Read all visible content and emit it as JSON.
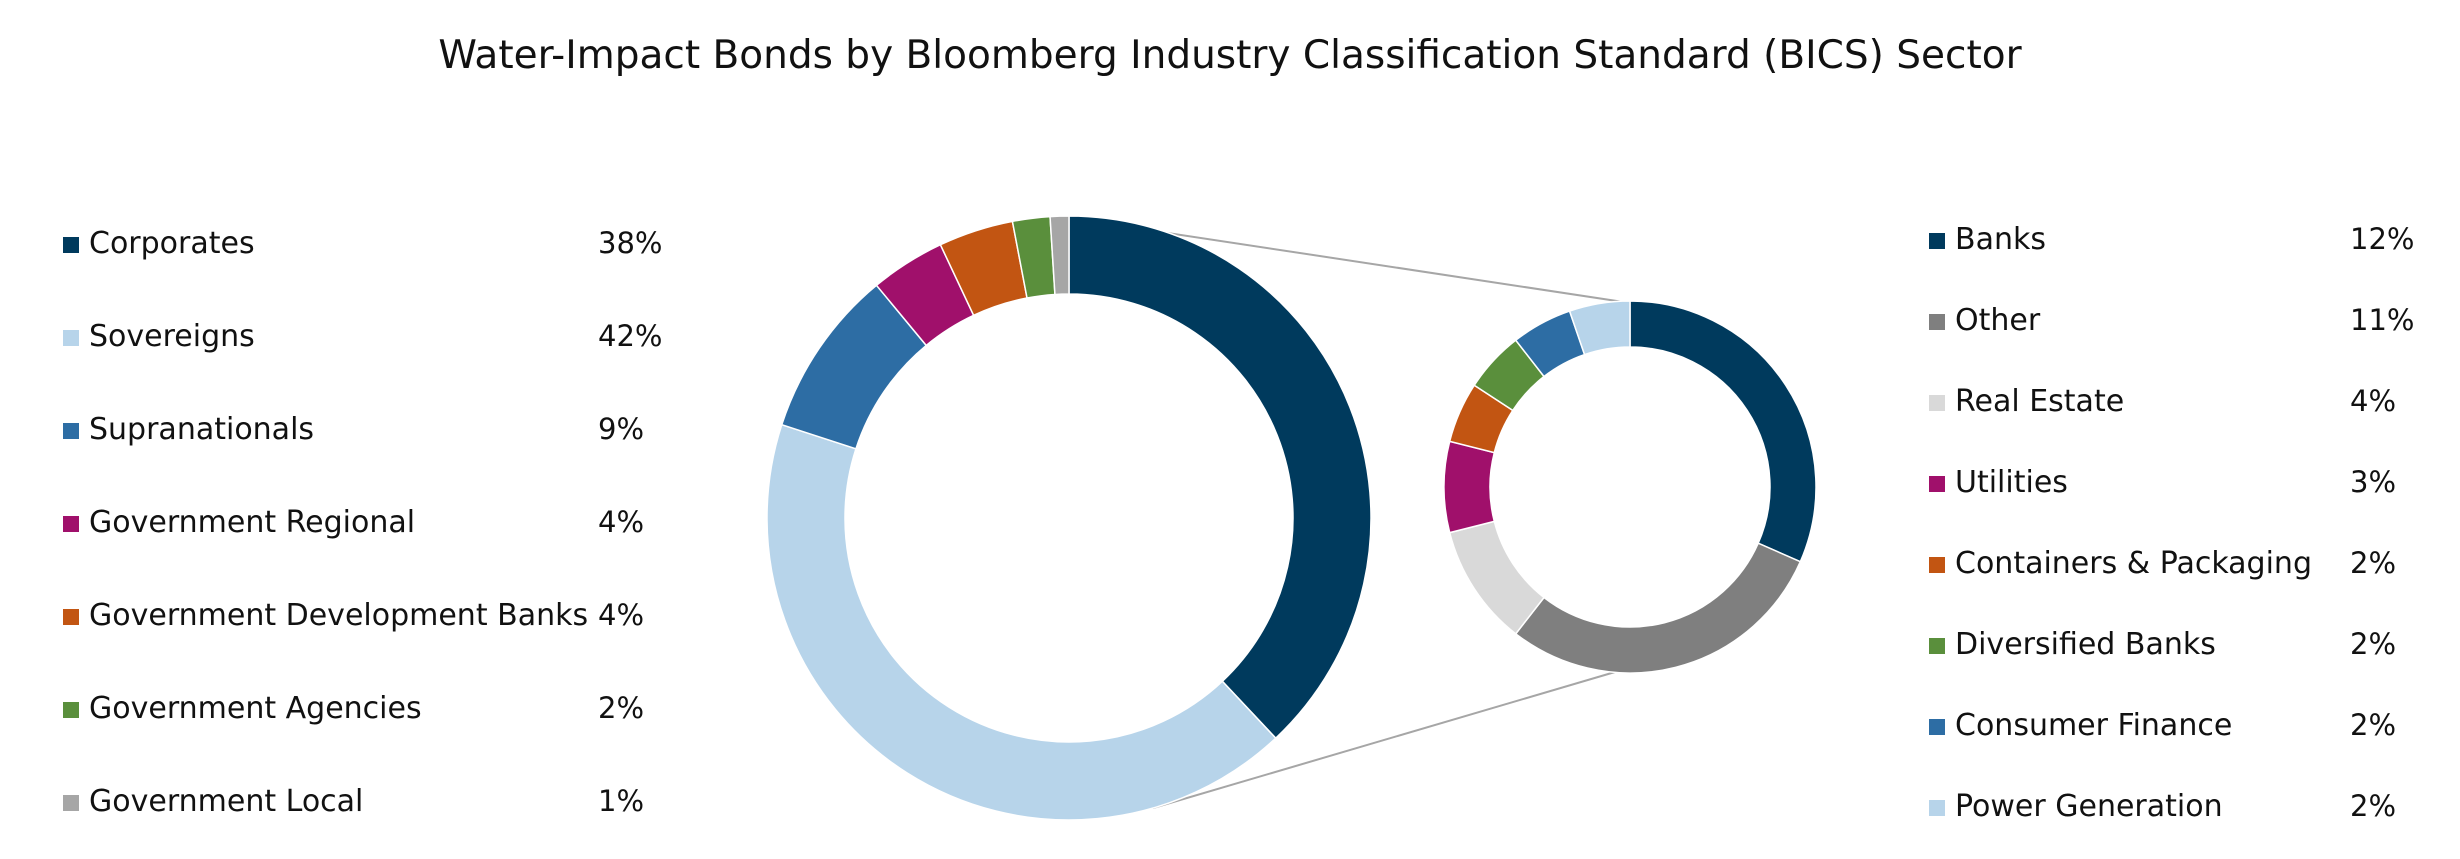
{
  "chart_data": [
    {
      "type": "donut",
      "title": "Water-Impact Bonds by Bloomberg Industry Classification Standard (BICS) Sector",
      "series": [
        {
          "label": "Corporates",
          "value": 38,
          "display": "38%",
          "color": "#003a5d"
        },
        {
          "label": "Sovereigns",
          "value": 42,
          "display": "42%",
          "color": "#b7d4ea"
        },
        {
          "label": "Supranationals",
          "value": 9,
          "display": "9%",
          "color": "#2d6da4"
        },
        {
          "label": "Government Regional",
          "value": 4,
          "display": "4%",
          "color": "#a0106b"
        },
        {
          "label": "Government Development Banks",
          "value": 4,
          "display": "4%",
          "color": "#c25512"
        },
        {
          "label": "Government Agencies",
          "value": 2,
          "display": "2%",
          "color": "#5a8f3c"
        },
        {
          "label": "Government Local",
          "value": 1,
          "display": "1%",
          "color": "#a6a6a6"
        }
      ]
    },
    {
      "type": "donut",
      "series": [
        {
          "label": "Banks",
          "value": 12,
          "display": "12%",
          "color": "#003a5d"
        },
        {
          "label": "Other",
          "value": 11,
          "display": "11%",
          "color": "#7f7f7f"
        },
        {
          "label": "Real Estate",
          "value": 4,
          "display": "4%",
          "color": "#d9d9d9"
        },
        {
          "label": "Utilities",
          "value": 3,
          "display": "3%",
          "color": "#a0106b"
        },
        {
          "label": "Containers & Packaging",
          "value": 2,
          "display": "2%",
          "color": "#c25512"
        },
        {
          "label": "Diversified Banks",
          "value": 2,
          "display": "2%",
          "color": "#5a8f3c"
        },
        {
          "label": "Consumer Finance",
          "value": 2,
          "display": "2%",
          "color": "#2d6da4"
        },
        {
          "label": "Power Generation",
          "value": 2,
          "display": "2%",
          "color": "#b7d4ea"
        }
      ]
    }
  ]
}
